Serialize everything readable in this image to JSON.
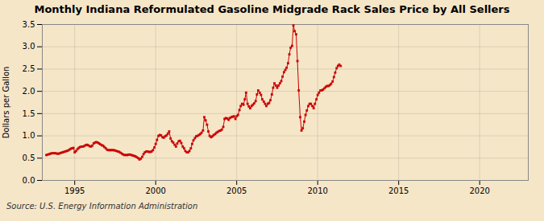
{
  "chart_data": {
    "type": "line",
    "title": "Monthly Indiana Reformulated Gasoline Midgrade Rack Sales Price by All Sellers",
    "ylabel": "Dollars per Gallon",
    "annotations": [
      "Source: U.S. Energy Information Administration"
    ],
    "color": "#cc0000",
    "marker": "square",
    "line_style": "solid",
    "grid": true,
    "xlim": [
      1993.0,
      2023.0
    ],
    "ylim": [
      0.0,
      3.5
    ],
    "xticks": [
      1995,
      2000,
      2005,
      2010,
      2015,
      2020
    ],
    "yticks": [
      {
        "value": 0.0,
        "label": "0.0"
      },
      0.5,
      {
        "value": 1.0,
        "label": "1.0"
      },
      1.5,
      {
        "value": 2.0,
        "label": "2.0"
      },
      2.5,
      {
        "value": 3.0,
        "label": "3.0"
      },
      3.5
    ],
    "x": [
      1993.25,
      1993.33,
      1993.42,
      1993.5,
      1993.58,
      1993.67,
      1993.75,
      1993.83,
      1993.92,
      1994.0,
      1994.08,
      1994.17,
      1994.25,
      1994.33,
      1994.42,
      1994.5,
      1994.58,
      1994.67,
      1994.75,
      1994.83,
      1994.92,
      1995.0,
      1995.08,
      1995.17,
      1995.25,
      1995.33,
      1995.42,
      1995.5,
      1995.58,
      1995.67,
      1995.75,
      1995.83,
      1995.92,
      1996.0,
      1996.08,
      1996.17,
      1996.25,
      1996.33,
      1996.42,
      1996.5,
      1996.58,
      1996.67,
      1996.75,
      1996.83,
      1996.92,
      1997.0,
      1997.08,
      1997.17,
      1997.25,
      1997.33,
      1997.42,
      1997.5,
      1997.58,
      1997.67,
      1997.75,
      1997.83,
      1997.92,
      1998.0,
      1998.08,
      1998.17,
      1998.25,
      1998.33,
      1998.42,
      1998.5,
      1998.58,
      1998.67,
      1998.75,
      1998.83,
      1998.92,
      1999.0,
      1999.08,
      1999.17,
      1999.25,
      1999.33,
      1999.42,
      1999.5,
      1999.58,
      1999.67,
      1999.75,
      1999.83,
      1999.92,
      2000.0,
      2000.08,
      2000.17,
      2000.25,
      2000.33,
      2000.42,
      2000.5,
      2000.58,
      2000.67,
      2000.75,
      2000.83,
      2000.92,
      2001.0,
      2001.08,
      2001.17,
      2001.25,
      2001.33,
      2001.42,
      2001.5,
      2001.58,
      2001.67,
      2001.75,
      2001.83,
      2001.92,
      2002.0,
      2002.08,
      2002.17,
      2002.25,
      2002.33,
      2002.42,
      2002.5,
      2002.58,
      2002.67,
      2002.75,
      2002.83,
      2002.92,
      2003.0,
      2003.08,
      2003.17,
      2003.25,
      2003.33,
      2003.42,
      2003.5,
      2003.58,
      2003.67,
      2003.75,
      2003.83,
      2003.92,
      2004.0,
      2004.08,
      2004.17,
      2004.25,
      2004.33,
      2004.42,
      2004.5,
      2004.58,
      2004.67,
      2004.75,
      2004.83,
      2004.92,
      2005.0,
      2005.08,
      2005.17,
      2005.25,
      2005.33,
      2005.42,
      2005.5,
      2005.58,
      2005.67,
      2005.75,
      2005.83,
      2005.92,
      2006.0,
      2006.08,
      2006.17,
      2006.25,
      2006.33,
      2006.42,
      2006.5,
      2006.58,
      2006.67,
      2006.75,
      2006.83,
      2006.92,
      2007.0,
      2007.08,
      2007.17,
      2007.25,
      2007.33,
      2007.42,
      2007.5,
      2007.58,
      2007.67,
      2007.75,
      2007.83,
      2007.92,
      2008.0,
      2008.08,
      2008.17,
      2008.25,
      2008.33,
      2008.42,
      2008.5,
      2008.58,
      2008.67,
      2008.75,
      2008.83,
      2008.92,
      2009.0,
      2009.08,
      2009.17,
      2009.25,
      2009.33,
      2009.42,
      2009.5,
      2009.58,
      2009.67,
      2009.75,
      2009.83,
      2009.92,
      2010.0,
      2010.08,
      2010.17,
      2010.25,
      2010.33,
      2010.42,
      2010.5,
      2010.58,
      2010.67,
      2010.75,
      2010.83,
      2010.92,
      2011.0,
      2011.08,
      2011.17,
      2011.25,
      2011.33,
      2011.42
    ],
    "values": [
      0.57,
      0.58,
      0.59,
      0.6,
      0.61,
      0.61,
      0.61,
      0.61,
      0.6,
      0.6,
      0.61,
      0.62,
      0.63,
      0.64,
      0.65,
      0.66,
      0.67,
      0.69,
      0.71,
      0.72,
      0.73,
      0.63,
      0.66,
      0.7,
      0.73,
      0.75,
      0.76,
      0.76,
      0.77,
      0.79,
      0.8,
      0.79,
      0.77,
      0.76,
      0.78,
      0.83,
      0.85,
      0.86,
      0.85,
      0.83,
      0.81,
      0.79,
      0.78,
      0.75,
      0.72,
      0.69,
      0.68,
      0.68,
      0.68,
      0.68,
      0.68,
      0.67,
      0.66,
      0.65,
      0.64,
      0.62,
      0.6,
      0.58,
      0.57,
      0.57,
      0.57,
      0.58,
      0.58,
      0.57,
      0.56,
      0.55,
      0.54,
      0.52,
      0.5,
      0.47,
      0.49,
      0.53,
      0.59,
      0.63,
      0.65,
      0.65,
      0.64,
      0.64,
      0.65,
      0.68,
      0.74,
      0.82,
      0.91,
      1.0,
      1.02,
      1.01,
      0.97,
      0.96,
      0.99,
      1.01,
      1.05,
      1.1,
      0.94,
      0.88,
      0.85,
      0.8,
      0.76,
      0.83,
      0.88,
      0.89,
      0.84,
      0.76,
      0.72,
      0.66,
      0.63,
      0.63,
      0.66,
      0.72,
      0.82,
      0.9,
      0.95,
      0.99,
      1.0,
      1.02,
      1.04,
      1.07,
      1.12,
      1.42,
      1.35,
      1.25,
      1.1,
      1.0,
      0.97,
      0.99,
      1.02,
      1.04,
      1.07,
      1.09,
      1.11,
      1.12,
      1.14,
      1.2,
      1.38,
      1.4,
      1.39,
      1.36,
      1.4,
      1.42,
      1.43,
      1.44,
      1.38,
      1.44,
      1.47,
      1.58,
      1.67,
      1.72,
      1.7,
      1.82,
      1.97,
      1.72,
      1.66,
      1.62,
      1.67,
      1.7,
      1.73,
      1.78,
      1.93,
      2.02,
      1.97,
      1.92,
      1.82,
      1.77,
      1.72,
      1.67,
      1.72,
      1.74,
      1.8,
      1.93,
      2.08,
      2.18,
      2.13,
      2.08,
      2.13,
      2.18,
      2.23,
      2.33,
      2.43,
      2.48,
      2.53,
      2.63,
      2.83,
      2.98,
      3.02,
      3.48,
      3.35,
      3.28,
      2.68,
      2.02,
      1.42,
      1.12,
      1.17,
      1.32,
      1.47,
      1.57,
      1.67,
      1.72,
      1.72,
      1.67,
      1.62,
      1.72,
      1.82,
      1.92,
      1.97,
      2.02,
      2.02,
      2.04,
      2.07,
      2.1,
      2.12,
      2.12,
      2.14,
      2.17,
      2.22,
      2.32,
      2.42,
      2.52,
      2.57,
      2.6,
      2.57
    ]
  }
}
